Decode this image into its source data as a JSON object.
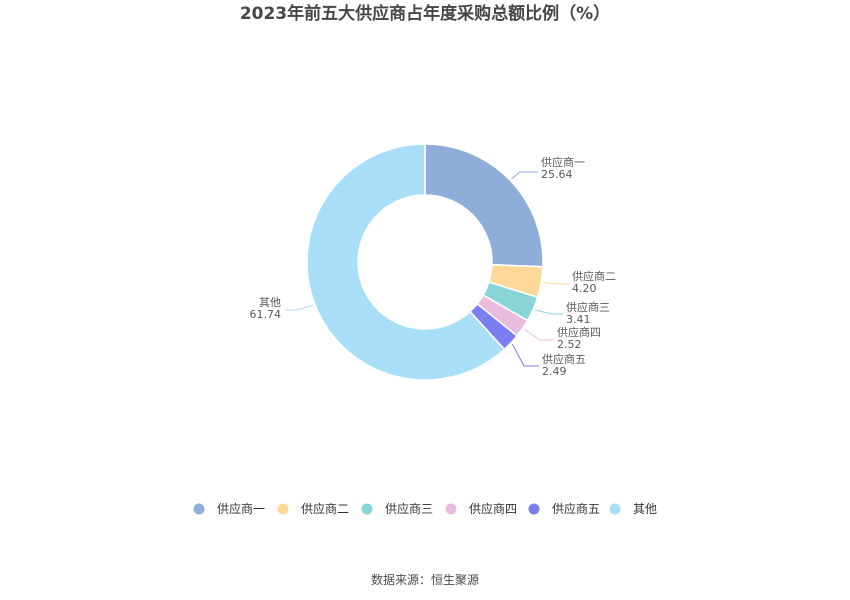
{
  "chart_data": {
    "type": "pie",
    "title": "2023年前五大供应商占年度采购总额比例（%）",
    "categories": [
      "供应商一",
      "供应商二",
      "供应商三",
      "供应商四",
      "供应商五",
      "其他"
    ],
    "values": [
      25.64,
      4.2,
      3.41,
      2.52,
      2.49,
      61.74
    ],
    "value_labels": [
      "25.64",
      "4.20",
      "3.41",
      "2.52",
      "2.49",
      "61.74"
    ],
    "colors": [
      "#8fadd9",
      "#fdd898",
      "#88d4d6",
      "#e9bbdc",
      "#7b7ef0",
      "#a8def8"
    ],
    "donut": true,
    "legend_position": "bottom"
  },
  "footer": {
    "source": "数据来源：恒生聚源"
  }
}
